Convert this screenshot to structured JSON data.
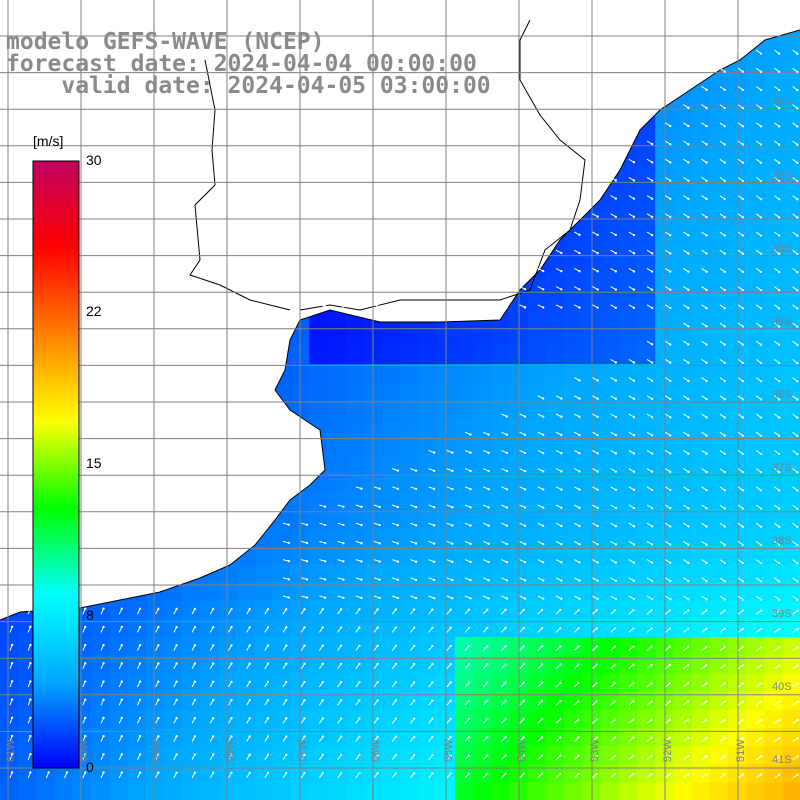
{
  "title": {
    "line1": "modelo GEFS-WAVE (NCEP)",
    "line2": "forecast date: 2024-04-04 00:00:00",
    "line3": "    valid date: 2024-04-05 03:00:00"
  },
  "colorbar": {
    "unit": "[m/s]",
    "ticks": [
      "30",
      "22",
      "15",
      "8",
      "0"
    ],
    "stops": [
      "#0000ff",
      "#00a8ff",
      "#00ffff",
      "#00ff00",
      "#ffff00",
      "#ff8000",
      "#ff0000",
      "#c00060"
    ]
  },
  "grid": {
    "lon_labels": [
      "61W",
      "60W",
      "59W",
      "58W",
      "57W",
      "56W",
      "55W",
      "54W",
      "53W",
      "52W",
      "51W"
    ],
    "lat_labels": [
      "32S",
      "33S",
      "34S",
      "35S",
      "36S",
      "37S",
      "38S",
      "39S",
      "40S",
      "41S"
    ]
  },
  "colors": {
    "land": "#ffffff",
    "coast": "#000000",
    "grid": "#808080",
    "arrow": "#ffffff"
  }
}
